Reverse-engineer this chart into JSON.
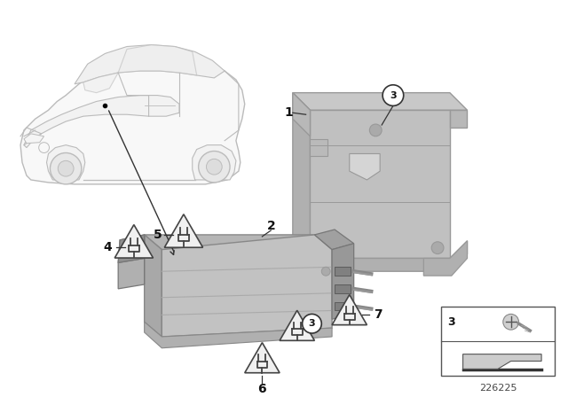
{
  "bg_color": "#ffffff",
  "part_number": "226225",
  "car_color": "#dddddd",
  "car_edge": "#bbbbbb",
  "bracket_color": "#b8b8b8",
  "bracket_edge": "#999999",
  "hub_color": "#c0c0c0",
  "hub_edge": "#888888",
  "label_color": "#111111",
  "arrow_color": "#333333",
  "triangle_face": "#f0f0f0",
  "triangle_edge": "#444444"
}
